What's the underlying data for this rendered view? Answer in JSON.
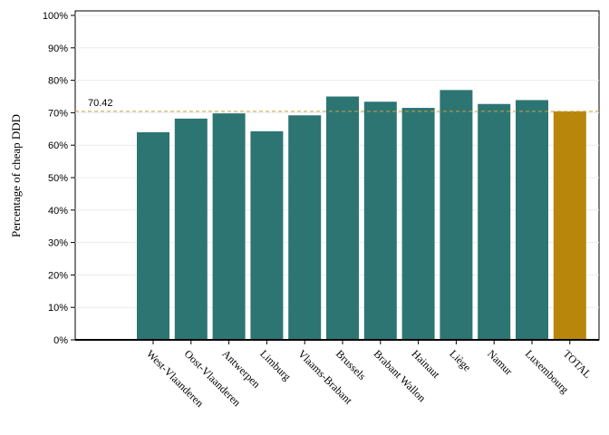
{
  "chart_data": {
    "type": "bar",
    "title": "",
    "xlabel": "",
    "ylabel": "Percentage of cheap DDD",
    "ylim": [
      0,
      100
    ],
    "yticks": [
      "0%",
      "10%",
      "20%",
      "30%",
      "40%",
      "50%",
      "60%",
      "70%",
      "80%",
      "90%",
      "100%"
    ],
    "categories": [
      "West-Vlaanderen",
      "Oost-Vlaanderen",
      "Antwerpen",
      "Limburg",
      "Vlaams-Brabant",
      "Brussels",
      "Brabant Wallon",
      "Hainaut",
      "Liège",
      "Namur",
      "Luxembourg",
      "TOTAL"
    ],
    "values": [
      64,
      68.2,
      69.8,
      64.3,
      69.2,
      75,
      73.4,
      71.5,
      77,
      72.7,
      73.9,
      70.42
    ],
    "highlight_category": "TOTAL",
    "bar_color": "#2d7573",
    "highlight_color": "#b8860b",
    "reference_line": {
      "value": 70.42,
      "label": "70.42",
      "color": "#c8a040",
      "style": "dashed"
    },
    "grid": true
  }
}
